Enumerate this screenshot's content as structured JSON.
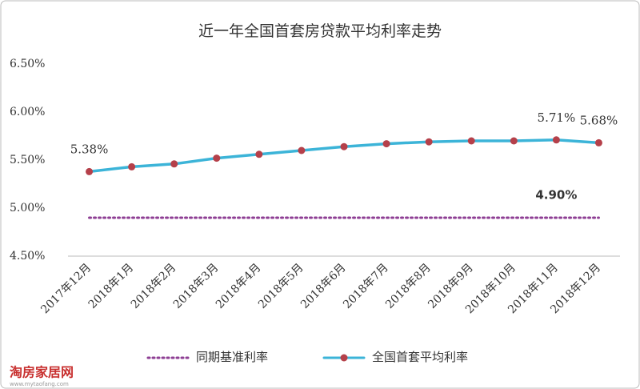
{
  "chart_data": {
    "type": "line",
    "title": "近一年全国首套房贷款平均利率走势",
    "categories": [
      "2017年12月",
      "2018年1月",
      "2018年2月",
      "2018年3月",
      "2018年4月",
      "2018年5月",
      "2018年6月",
      "2018年7月",
      "2018年8月",
      "2018年9月",
      "2018年10月",
      "2018年11月",
      "2018年12月"
    ],
    "series": [
      {
        "name": "同期基准利率",
        "color": "#8e3f94",
        "style": "dotted",
        "markers": false,
        "values": [
          4.9,
          4.9,
          4.9,
          4.9,
          4.9,
          4.9,
          4.9,
          4.9,
          4.9,
          4.9,
          4.9,
          4.9,
          4.9
        ],
        "value_labels": [
          null,
          null,
          null,
          null,
          null,
          null,
          null,
          null,
          null,
          null,
          null,
          "4.90%",
          null
        ]
      },
      {
        "name": "全国首套平均利率",
        "color": "#3cb4d8",
        "marker_color": "#b5404a",
        "style": "solid",
        "markers": true,
        "values": [
          5.38,
          5.43,
          5.46,
          5.52,
          5.56,
          5.6,
          5.64,
          5.67,
          5.69,
          5.7,
          5.7,
          5.71,
          5.68
        ],
        "value_labels": [
          "5.38%",
          null,
          null,
          null,
          null,
          null,
          null,
          null,
          null,
          null,
          null,
          "5.71%",
          "5.68%"
        ]
      }
    ],
    "ylim": [
      4.5,
      6.5
    ],
    "yticks": [
      {
        "value": 4.5,
        "label": "4.50%"
      },
      {
        "value": 5,
        "label": "5.00%"
      },
      {
        "value": 5.5,
        "label": "5.50%"
      },
      {
        "value": 6,
        "label": "6.00%"
      },
      {
        "value": 6.5,
        "label": "6.50%"
      }
    ],
    "grid": false,
    "legend": "bottom",
    "watermark": "淘房家居网",
    "watermark_url": "www.mytaofang.com"
  }
}
